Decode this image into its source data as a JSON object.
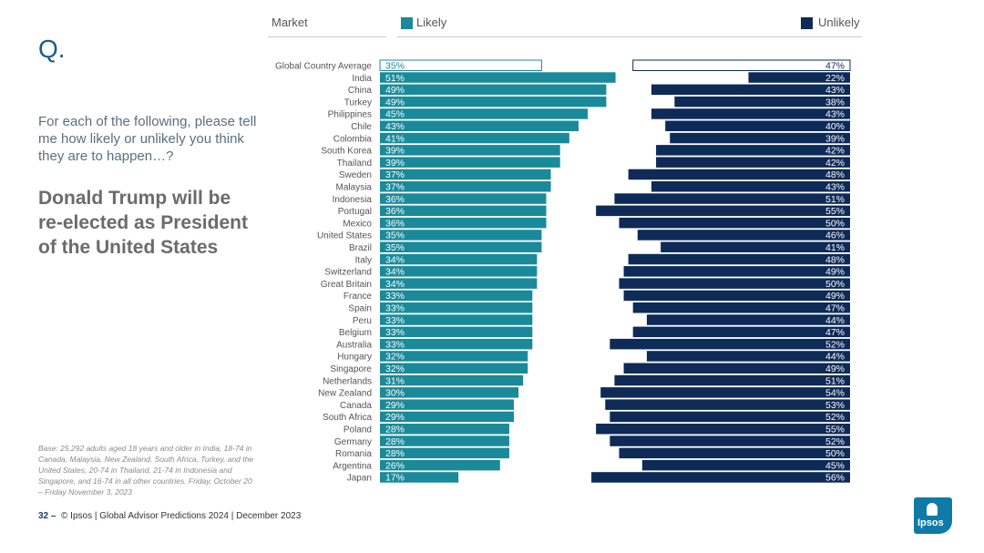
{
  "slide": {
    "q_label": "Q.",
    "prompt": "For each of the following, please tell me how likely or unlikely you think they are to happen…?",
    "headline": "Donald Trump will be re-elected as President of the United States",
    "base_note": "Base: 25,292 adults aged 18 years and older in India, 18-74 in Canada, Malaysia, New Zealand, South Africa, Turkey, and the United States, 20-74 in Thailand, 21-74 in Indonesia and Singapore, and 16-74 in all other countries. Friday, October 20 – Friday November 3, 2023",
    "page_number": "32",
    "page_dash": "–",
    "footer_text": "© Ipsos | Global Advisor Predictions 2024 | December 2023",
    "logo_text": "Ipsos"
  },
  "colors": {
    "likely": "#1a8a9a",
    "unlikely": "#0e2a57",
    "outline_likely": "#1a8a9a",
    "outline_unlikely": "#0e2a57",
    "label_text": "#ffffff"
  },
  "chart_data": {
    "type": "bar",
    "header_market": "Market",
    "categories": [
      "Global Country Average",
      "India",
      "China",
      "Turkey",
      "Philippines",
      "Chile",
      "Colombia",
      "South Korea",
      "Thailand",
      "Sweden",
      "Malaysia",
      "Indonesia",
      "Portugal",
      "Mexico",
      "United States",
      "Brazil",
      "Italy",
      "Switzerland",
      "Great Britain",
      "France",
      "Spain",
      "Peru",
      "Belgium",
      "Australia",
      "Hungary",
      "Singapore",
      "Netherlands",
      "New Zealand",
      "Canada",
      "South Africa",
      "Poland",
      "Germany",
      "Romania",
      "Argentina",
      "Japan"
    ],
    "series": [
      {
        "name": "Likely",
        "values": [
          35,
          51,
          49,
          49,
          45,
          43,
          41,
          39,
          39,
          37,
          37,
          36,
          36,
          36,
          35,
          35,
          34,
          34,
          34,
          33,
          33,
          33,
          33,
          33,
          32,
          32,
          31,
          30,
          29,
          29,
          28,
          28,
          28,
          26,
          17
        ]
      },
      {
        "name": "Unlikely",
        "values": [
          47,
          22,
          43,
          38,
          43,
          40,
          39,
          42,
          42,
          48,
          43,
          51,
          55,
          50,
          46,
          41,
          48,
          49,
          50,
          49,
          47,
          44,
          47,
          52,
          44,
          49,
          51,
          54,
          53,
          52,
          55,
          52,
          50,
          45,
          56
        ]
      }
    ],
    "value_suffix": "%",
    "highlight_first_row": true
  }
}
